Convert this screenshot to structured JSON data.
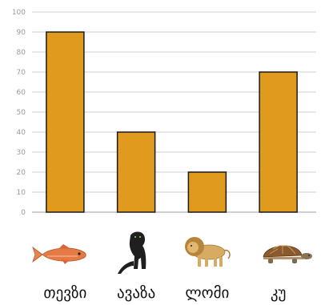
{
  "chart_data": {
    "type": "bar",
    "categories": [
      "თევზი",
      "ავაზა",
      "ლომი",
      "კუ"
    ],
    "category_icons": [
      "fish-icon",
      "panther-icon",
      "lion-icon",
      "turtle-icon"
    ],
    "values": [
      90,
      40,
      20,
      70
    ],
    "ylim": [
      0,
      100
    ],
    "yticks": [
      "0",
      "10",
      "20",
      "30",
      "40",
      "50",
      "60",
      "70",
      "80",
      "90",
      "100"
    ],
    "grid": true,
    "colors": {
      "bar": "#e09a1e",
      "bar_stroke": "#1a1a1a",
      "grid": "#cfcfcf",
      "axis": "#b5b5b5"
    }
  }
}
